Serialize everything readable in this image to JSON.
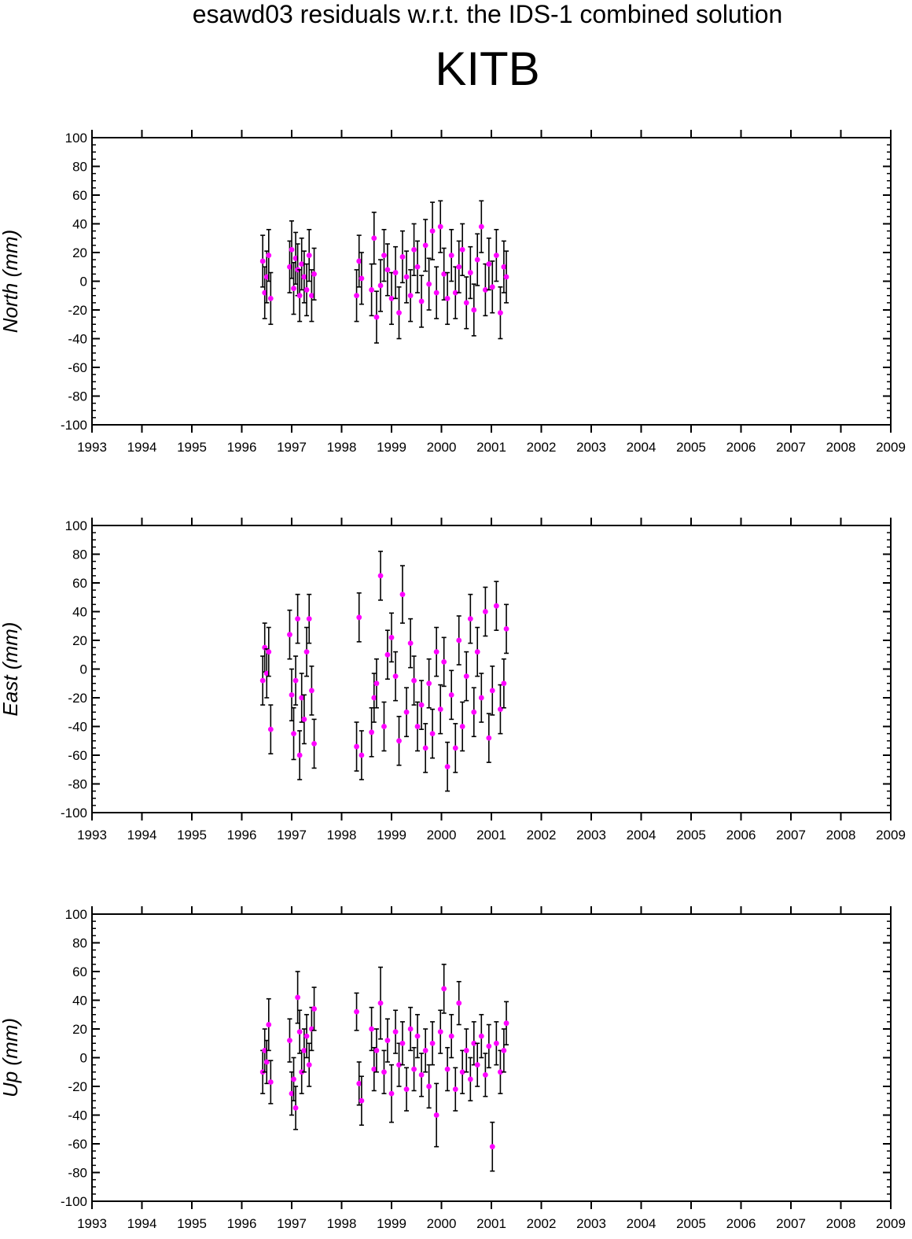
{
  "title": "esawd03 residuals w.r.t. the IDS-1 combined solution",
  "station": "KITB",
  "colors": {
    "point": "#ff00ff",
    "errorbar": "#000000",
    "axis": "#000000"
  },
  "chart_data": [
    {
      "type": "scatter",
      "ylabel": "North (mm)",
      "xlim": [
        1993,
        2009
      ],
      "ylim": [
        -100,
        100
      ],
      "xticks": [
        "1993",
        "1994",
        "1995",
        "1996",
        "1997",
        "1998",
        "1999",
        "2000",
        "2001",
        "2002",
        "2003",
        "2004",
        "2005",
        "2006",
        "2007",
        "2008",
        "2009"
      ],
      "yticks": [
        "100",
        "80",
        "60",
        "40",
        "20",
        "0",
        "-20",
        "-40",
        "-60",
        "-80",
        "-100"
      ],
      "error_bars": true,
      "series": [
        {
          "x": [
            1996.42,
            1996.46,
            1996.5,
            1996.54,
            1996.58,
            1996.96,
            1997.0,
            1997.04,
            1997.08,
            1997.12,
            1997.16,
            1997.2,
            1997.25,
            1997.3,
            1997.35,
            1997.4,
            1997.45,
            1998.3,
            1998.35,
            1998.4,
            1998.6,
            1998.65,
            1998.7,
            1998.78,
            1998.85,
            1998.92,
            1999.0,
            1999.08,
            1999.15,
            1999.22,
            1999.3,
            1999.38,
            1999.45,
            1999.52,
            1999.6,
            1999.68,
            1999.75,
            1999.82,
            1999.9,
            1999.98,
            2000.05,
            2000.12,
            2000.2,
            2000.28,
            2000.35,
            2000.42,
            2000.5,
            2000.58,
            2000.65,
            2000.72,
            2000.8,
            2000.88,
            2000.95,
            2001.02,
            2001.1,
            2001.18,
            2001.25,
            2001.3
          ],
          "y": [
            14,
            -8,
            3,
            18,
            -12,
            10,
            22,
            -5,
            16,
            8,
            -10,
            12,
            3,
            -6,
            18,
            -10,
            5,
            -10,
            14,
            2,
            -6,
            30,
            -25,
            -3,
            18,
            8,
            -12,
            6,
            -22,
            17,
            3,
            -10,
            22,
            10,
            -14,
            25,
            -2,
            35,
            -8,
            38,
            5,
            -12,
            18,
            -8,
            10,
            22,
            -15,
            6,
            -20,
            15,
            38,
            -6,
            12,
            -4,
            18,
            -22,
            10,
            3
          ],
          "err": [
            18,
            18,
            18,
            18,
            18,
            18,
            20,
            18,
            18,
            18,
            18,
            18,
            18,
            18,
            18,
            18,
            18,
            18,
            18,
            18,
            18,
            18,
            18,
            18,
            18,
            18,
            18,
            18,
            18,
            18,
            18,
            18,
            18,
            18,
            18,
            18,
            18,
            20,
            18,
            18,
            18,
            18,
            18,
            18,
            18,
            18,
            18,
            18,
            18,
            18,
            18,
            18,
            18,
            18,
            18,
            18,
            18,
            18
          ]
        }
      ]
    },
    {
      "type": "scatter",
      "ylabel": "East (mm)",
      "xlim": [
        1993,
        2009
      ],
      "ylim": [
        -100,
        100
      ],
      "xticks": [
        "1993",
        "1994",
        "1995",
        "1996",
        "1997",
        "1998",
        "1999",
        "2000",
        "2001",
        "2002",
        "2003",
        "2004",
        "2005",
        "2006",
        "2007",
        "2008",
        "2009"
      ],
      "yticks": [
        "100",
        "80",
        "60",
        "40",
        "20",
        "0",
        "-20",
        "-40",
        "-60",
        "-80",
        "-100"
      ],
      "error_bars": true,
      "series": [
        {
          "x": [
            1996.42,
            1996.46,
            1996.5,
            1996.54,
            1996.58,
            1996.96,
            1997.0,
            1997.04,
            1997.08,
            1997.12,
            1997.16,
            1997.2,
            1997.25,
            1997.3,
            1997.35,
            1997.4,
            1997.45,
            1998.3,
            1998.35,
            1998.4,
            1998.6,
            1998.65,
            1998.7,
            1998.78,
            1998.85,
            1998.92,
            1999.0,
            1999.08,
            1999.15,
            1999.22,
            1999.3,
            1999.38,
            1999.45,
            1999.52,
            1999.6,
            1999.68,
            1999.75,
            1999.82,
            1999.9,
            1999.98,
            2000.05,
            2000.12,
            2000.2,
            2000.28,
            2000.35,
            2000.42,
            2000.5,
            2000.58,
            2000.65,
            2000.72,
            2000.8,
            2000.88,
            2000.95,
            2001.02,
            2001.1,
            2001.18,
            2001.25,
            2001.3
          ],
          "y": [
            -8,
            15,
            -3,
            12,
            -42,
            24,
            -18,
            -45,
            -8,
            35,
            -60,
            -20,
            -35,
            12,
            35,
            -15,
            -52,
            -54,
            36,
            -60,
            -44,
            -20,
            -10,
            65,
            -40,
            10,
            22,
            -5,
            -50,
            52,
            -30,
            18,
            -8,
            -40,
            -25,
            -55,
            -10,
            -45,
            12,
            -28,
            5,
            -68,
            -18,
            -55,
            20,
            -40,
            -5,
            35,
            -30,
            12,
            -20,
            40,
            -48,
            -15,
            44,
            -28,
            -10,
            28
          ],
          "err": [
            17,
            17,
            17,
            17,
            17,
            17,
            18,
            18,
            17,
            17,
            17,
            17,
            17,
            17,
            17,
            17,
            17,
            17,
            17,
            17,
            17,
            17,
            17,
            17,
            17,
            17,
            17,
            17,
            17,
            20,
            17,
            17,
            17,
            17,
            17,
            17,
            17,
            17,
            17,
            17,
            17,
            17,
            17,
            17,
            17,
            17,
            17,
            17,
            17,
            17,
            17,
            17,
            17,
            17,
            17,
            17,
            17,
            17
          ]
        }
      ]
    },
    {
      "type": "scatter",
      "ylabel": "Up (mm)",
      "xlim": [
        1993,
        2009
      ],
      "ylim": [
        -100,
        100
      ],
      "xticks": [
        "1993",
        "1994",
        "1995",
        "1996",
        "1997",
        "1998",
        "1999",
        "2000",
        "2001",
        "2002",
        "2003",
        "2004",
        "2005",
        "2006",
        "2007",
        "2008",
        "2009"
      ],
      "yticks": [
        "100",
        "80",
        "60",
        "40",
        "20",
        "0",
        "-20",
        "-40",
        "-60",
        "-80",
        "-100"
      ],
      "error_bars": true,
      "series": [
        {
          "x": [
            1996.42,
            1996.46,
            1996.5,
            1996.54,
            1996.58,
            1996.96,
            1997.0,
            1997.04,
            1997.08,
            1997.12,
            1997.16,
            1997.2,
            1997.25,
            1997.3,
            1997.35,
            1997.4,
            1997.45,
            1998.3,
            1998.35,
            1998.4,
            1998.6,
            1998.65,
            1998.7,
            1998.78,
            1998.85,
            1998.92,
            1999.0,
            1999.08,
            1999.15,
            1999.22,
            1999.3,
            1999.38,
            1999.45,
            1999.52,
            1999.6,
            1999.68,
            1999.75,
            1999.82,
            1999.9,
            1999.98,
            2000.05,
            2000.12,
            2000.2,
            2000.28,
            2000.35,
            2000.42,
            2000.5,
            2000.58,
            2000.65,
            2000.72,
            2000.8,
            2000.88,
            2000.95,
            2001.02,
            2001.1,
            2001.18,
            2001.25,
            2001.3
          ],
          "y": [
            -10,
            5,
            -3,
            23,
            -17,
            12,
            -25,
            -15,
            -35,
            42,
            18,
            -10,
            5,
            15,
            -5,
            20,
            34,
            32,
            -18,
            -30,
            20,
            -8,
            5,
            38,
            -10,
            12,
            -25,
            18,
            -5,
            10,
            -22,
            20,
            -8,
            15,
            -12,
            5,
            -20,
            10,
            -40,
            18,
            48,
            -8,
            15,
            -22,
            38,
            -10,
            5,
            -15,
            10,
            -5,
            15,
            -12,
            8,
            -62,
            10,
            -10,
            5,
            24
          ],
          "err": [
            15,
            15,
            15,
            18,
            15,
            15,
            15,
            15,
            15,
            18,
            15,
            15,
            15,
            15,
            15,
            15,
            15,
            13,
            15,
            17,
            15,
            15,
            15,
            25,
            15,
            15,
            20,
            15,
            15,
            15,
            15,
            15,
            15,
            15,
            15,
            15,
            15,
            15,
            22,
            15,
            17,
            15,
            15,
            15,
            15,
            15,
            15,
            15,
            15,
            15,
            15,
            15,
            15,
            17,
            15,
            15,
            15,
            15
          ]
        }
      ]
    }
  ]
}
